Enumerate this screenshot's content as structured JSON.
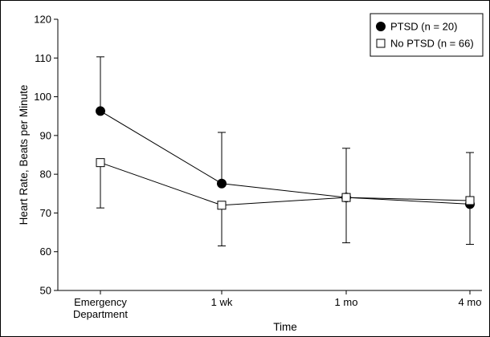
{
  "chart_data": {
    "type": "line",
    "title": "",
    "xlabel": "Time",
    "ylabel": "Heart Rate, Beats per Minute",
    "ylim": [
      50,
      120
    ],
    "yticks": [
      50,
      60,
      70,
      80,
      90,
      100,
      110,
      120
    ],
    "categories": [
      [
        "Emergency",
        "Department"
      ],
      [
        "1 wk"
      ],
      [
        "1 mo"
      ],
      [
        "4 mo"
      ]
    ],
    "series": [
      {
        "name": "PTSD (n = 20)",
        "marker": "filled-circle",
        "values": [
          96.3,
          77.6,
          74.0,
          72.3
        ],
        "err_upper": [
          110.3,
          90.8,
          86.7,
          85.6
        ],
        "err_lower": null
      },
      {
        "name": "No PTSD (n = 66)",
        "marker": "open-square",
        "values": [
          83.0,
          72.0,
          74.0,
          73.2
        ],
        "err_upper": null,
        "err_lower": [
          71.3,
          61.5,
          62.3,
          61.9
        ]
      }
    ],
    "legend_position": "top-right",
    "grid": false
  }
}
